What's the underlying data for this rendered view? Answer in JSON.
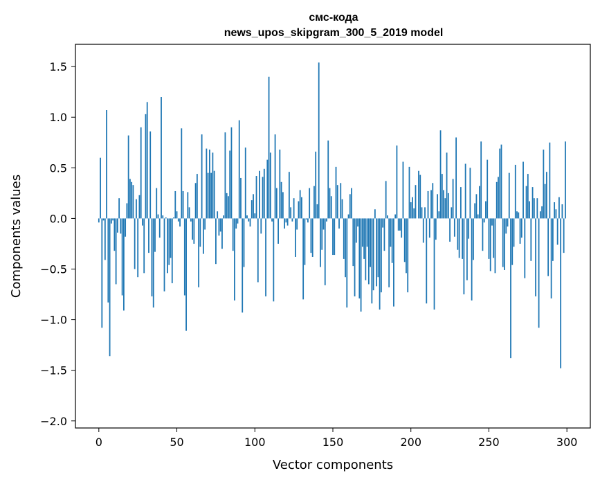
{
  "chart_data": {
    "type": "bar",
    "title": "смс-кода",
    "subtitle": "news_upos_skipgram_300_5_2019 model",
    "xlabel": "Vector components",
    "ylabel": "Components values",
    "xlim": [
      -15,
      315
    ],
    "ylim": [
      -2.07,
      1.72
    ],
    "xticks": [
      0,
      50,
      100,
      150,
      200,
      250,
      300
    ],
    "yticks": [
      -2.0,
      -1.5,
      -1.0,
      -0.5,
      0.0,
      0.5,
      1.0,
      1.5
    ],
    "ytick_labels": [
      "−2.0",
      "−1.5",
      "−1.0",
      "−0.5",
      "0.0",
      "0.5",
      "1.0",
      "1.5"
    ],
    "grid": false,
    "bar_color": "#1f77b4",
    "x": "0..299 (component index)",
    "values": [
      -0.04,
      0.6,
      -1.08,
      -0.02,
      -0.41,
      1.07,
      -0.83,
      -1.36,
      -0.05,
      -0.02,
      -0.32,
      -0.65,
      -0.14,
      0.2,
      -0.15,
      -0.76,
      -0.91,
      -0.18,
      0.15,
      0.82,
      0.39,
      0.36,
      0.33,
      -0.5,
      0.19,
      -0.58,
      0.23,
      0.9,
      -0.07,
      -0.54,
      1.03,
      1.15,
      -0.34,
      0.86,
      -0.77,
      -0.88,
      -0.33,
      0.3,
      0.04,
      -0.19,
      1.2,
      0.03,
      -0.72,
      0.01,
      -0.54,
      -0.46,
      -0.39,
      -0.64,
      0.01,
      0.27,
      0.07,
      -0.03,
      -0.08,
      0.89,
      0.27,
      -0.76,
      -1.11,
      0.26,
      0.11,
      -0.03,
      -0.21,
      -0.25,
      0.35,
      0.44,
      -0.68,
      -0.28,
      0.83,
      -0.35,
      -0.11,
      0.69,
      0.45,
      0.68,
      0.45,
      0.65,
      0.47,
      -0.45,
      0.07,
      -0.17,
      -0.13,
      -0.3,
      0.03,
      0.85,
      0.25,
      0.22,
      0.67,
      0.9,
      -0.32,
      -0.81,
      -0.1,
      -0.05,
      0.97,
      0.4,
      -0.93,
      -0.48,
      0.7,
      0.03,
      -0.03,
      -0.08,
      0.18,
      0.24,
      0.05,
      0.42,
      -0.63,
      0.47,
      -0.15,
      0.41,
      0.49,
      -0.77,
      0.58,
      1.4,
      0.65,
      -0.03,
      -0.82,
      0.83,
      0.3,
      -0.25,
      0.68,
      0.36,
      0.26,
      -0.1,
      -0.04,
      -0.07,
      0.46,
      0.11,
      -0.03,
      0.2,
      -0.38,
      -0.11,
      0.17,
      0.28,
      0.21,
      -0.8,
      -0.46,
      -0.01,
      -0.04,
      0.3,
      -0.34,
      -0.38,
      0.32,
      0.66,
      0.14,
      1.54,
      -0.48,
      -0.31,
      -0.11,
      -0.66,
      -0.03,
      0.77,
      0.3,
      0.22,
      -0.36,
      -0.36,
      0.51,
      0.33,
      -0.1,
      0.35,
      0.19,
      -0.4,
      -0.58,
      -0.88,
      0.04,
      0.24,
      0.3,
      -0.47,
      -0.77,
      -0.24,
      -0.08,
      -0.79,
      -0.92,
      -0.28,
      -0.4,
      -0.61,
      -0.28,
      -0.65,
      -0.48,
      -0.84,
      -0.71,
      0.09,
      -0.67,
      -0.58,
      -0.9,
      -0.73,
      -0.09,
      -0.32,
      0.37,
      0.03,
      -0.68,
      -0.28,
      -0.44,
      -0.87,
      0.04,
      0.72,
      -0.12,
      -0.12,
      -0.19,
      0.56,
      -0.43,
      -0.54,
      -0.73,
      0.51,
      0.16,
      0.21,
      0.1,
      0.33,
      0.0,
      0.47,
      0.43,
      0.11,
      -0.24,
      0.11,
      -0.84,
      0.27,
      -0.19,
      0.28,
      0.35,
      -0.9,
      -0.21,
      0.24,
      0.07,
      0.87,
      0.44,
      0.28,
      0.2,
      0.65,
      0.25,
      -0.23,
      0.11,
      0.39,
      -0.18,
      0.8,
      -0.31,
      -0.39,
      0.31,
      -0.4,
      -0.75,
      0.54,
      -0.61,
      -0.2,
      0.5,
      -0.81,
      -0.41,
      0.15,
      0.24,
      0.04,
      0.32,
      0.76,
      -0.32,
      -0.04,
      0.17,
      0.58,
      -0.4,
      -0.52,
      -0.07,
      -0.39,
      -0.54,
      0.36,
      0.41,
      0.69,
      0.73,
      -0.48,
      -0.51,
      -0.15,
      -0.08,
      0.45,
      -1.38,
      -0.46,
      -0.28,
      0.53,
      0.07,
      0.06,
      -0.25,
      -0.19,
      0.56,
      -0.59,
      0.32,
      0.44,
      0.17,
      -0.42,
      0.31,
      0.2,
      -0.77,
      0.2,
      -1.08,
      0.07,
      0.12,
      0.68,
      0.34,
      0.46,
      -0.57,
      0.75,
      -0.79,
      -0.42,
      0.16,
      0.09,
      -0.26,
      0.21,
      -1.48,
      0.14,
      -0.34,
      0.76
    ]
  }
}
